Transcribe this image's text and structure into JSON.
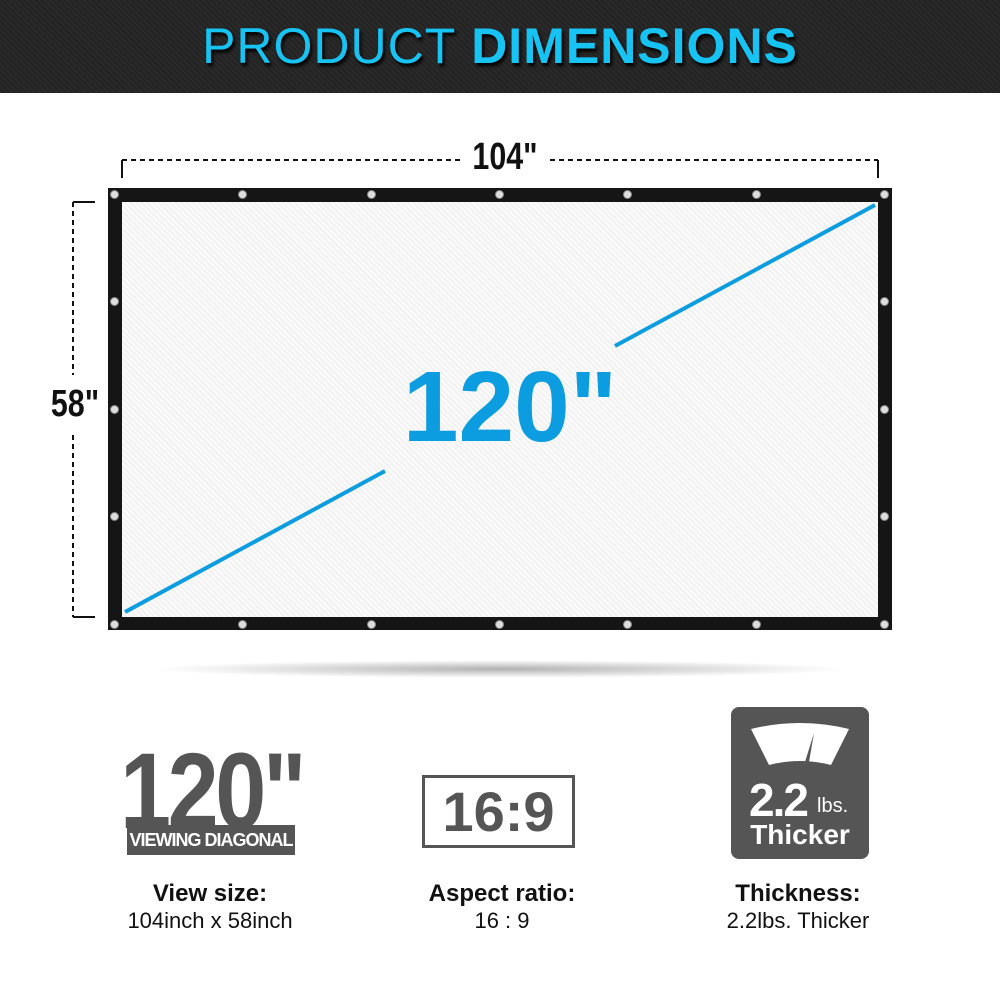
{
  "banner": {
    "title_light": "PRODUCT",
    "title_bold": "DIMENSIONS"
  },
  "diagram": {
    "width": "104\"",
    "height": "58\"",
    "diagonal": "120\""
  },
  "features": [
    {
      "icon": "120\"",
      "icon_sub": "VIEWING DIAGONAL",
      "title": "View size:",
      "value": "104inch x 58inch"
    },
    {
      "icon": "16:9",
      "title": "Aspect ratio:",
      "value": "16 : 9"
    },
    {
      "icon": "2.2",
      "icon_unit": "lbs.",
      "icon_sub": "Thicker",
      "title": "Thickness:",
      "value": "2.2lbs. Thicker"
    }
  ],
  "colors": {
    "accent": "#17c3f2",
    "diagonal": "#0c9de0",
    "icon_gray": "#555555"
  }
}
